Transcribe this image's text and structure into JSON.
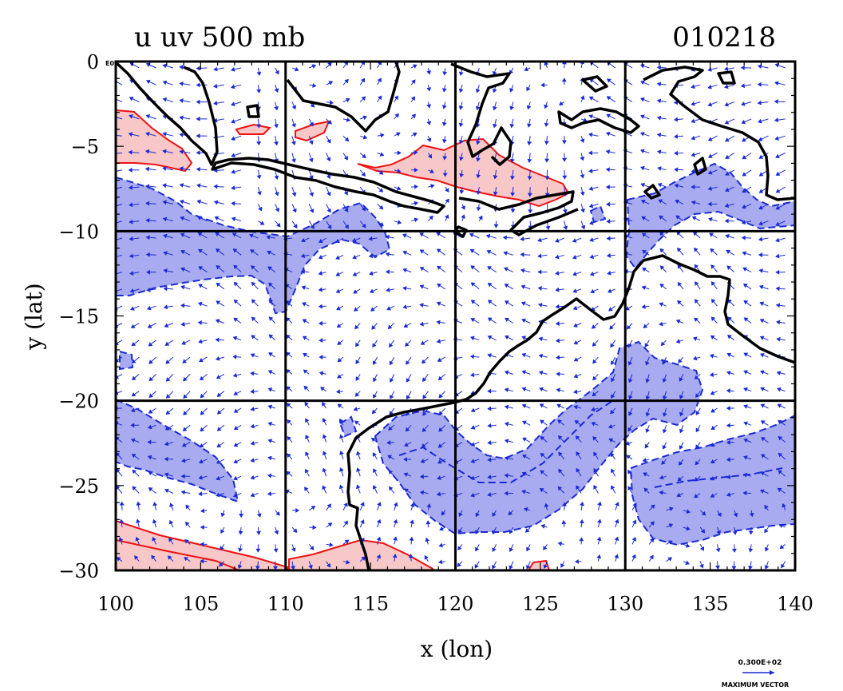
{
  "map": {
    "title_left": "u uv 500 mb",
    "title_right": "010218",
    "corner_label": "E0",
    "x_axis_label": "x (lon)",
    "y_axis_label": "y (lat)",
    "x_ticks": [
      "100",
      "105",
      "110",
      "115",
      "120",
      "125",
      "130",
      "135",
      "140"
    ],
    "y_ticks": [
      "0",
      "−5",
      "−10",
      "−15",
      "−20",
      "−25",
      "−30"
    ],
    "lon_range": [
      100,
      140
    ],
    "lat_range": [
      -30,
      0
    ],
    "grid_lines_lon": [
      110,
      120,
      130
    ],
    "grid_lines_lat": [
      -10,
      -20
    ],
    "vector_key_value": "0.300E+02",
    "vector_key_label": "MAXIMUM VECTOR"
  },
  "colors": {
    "positive_fill": "#f8c8c8",
    "positive_line": "#ee1111",
    "negative_fill": "#a9abf0",
    "negative_line": "#1a2ad6",
    "vector": "#1a2ad6",
    "coast": "#000000"
  }
}
